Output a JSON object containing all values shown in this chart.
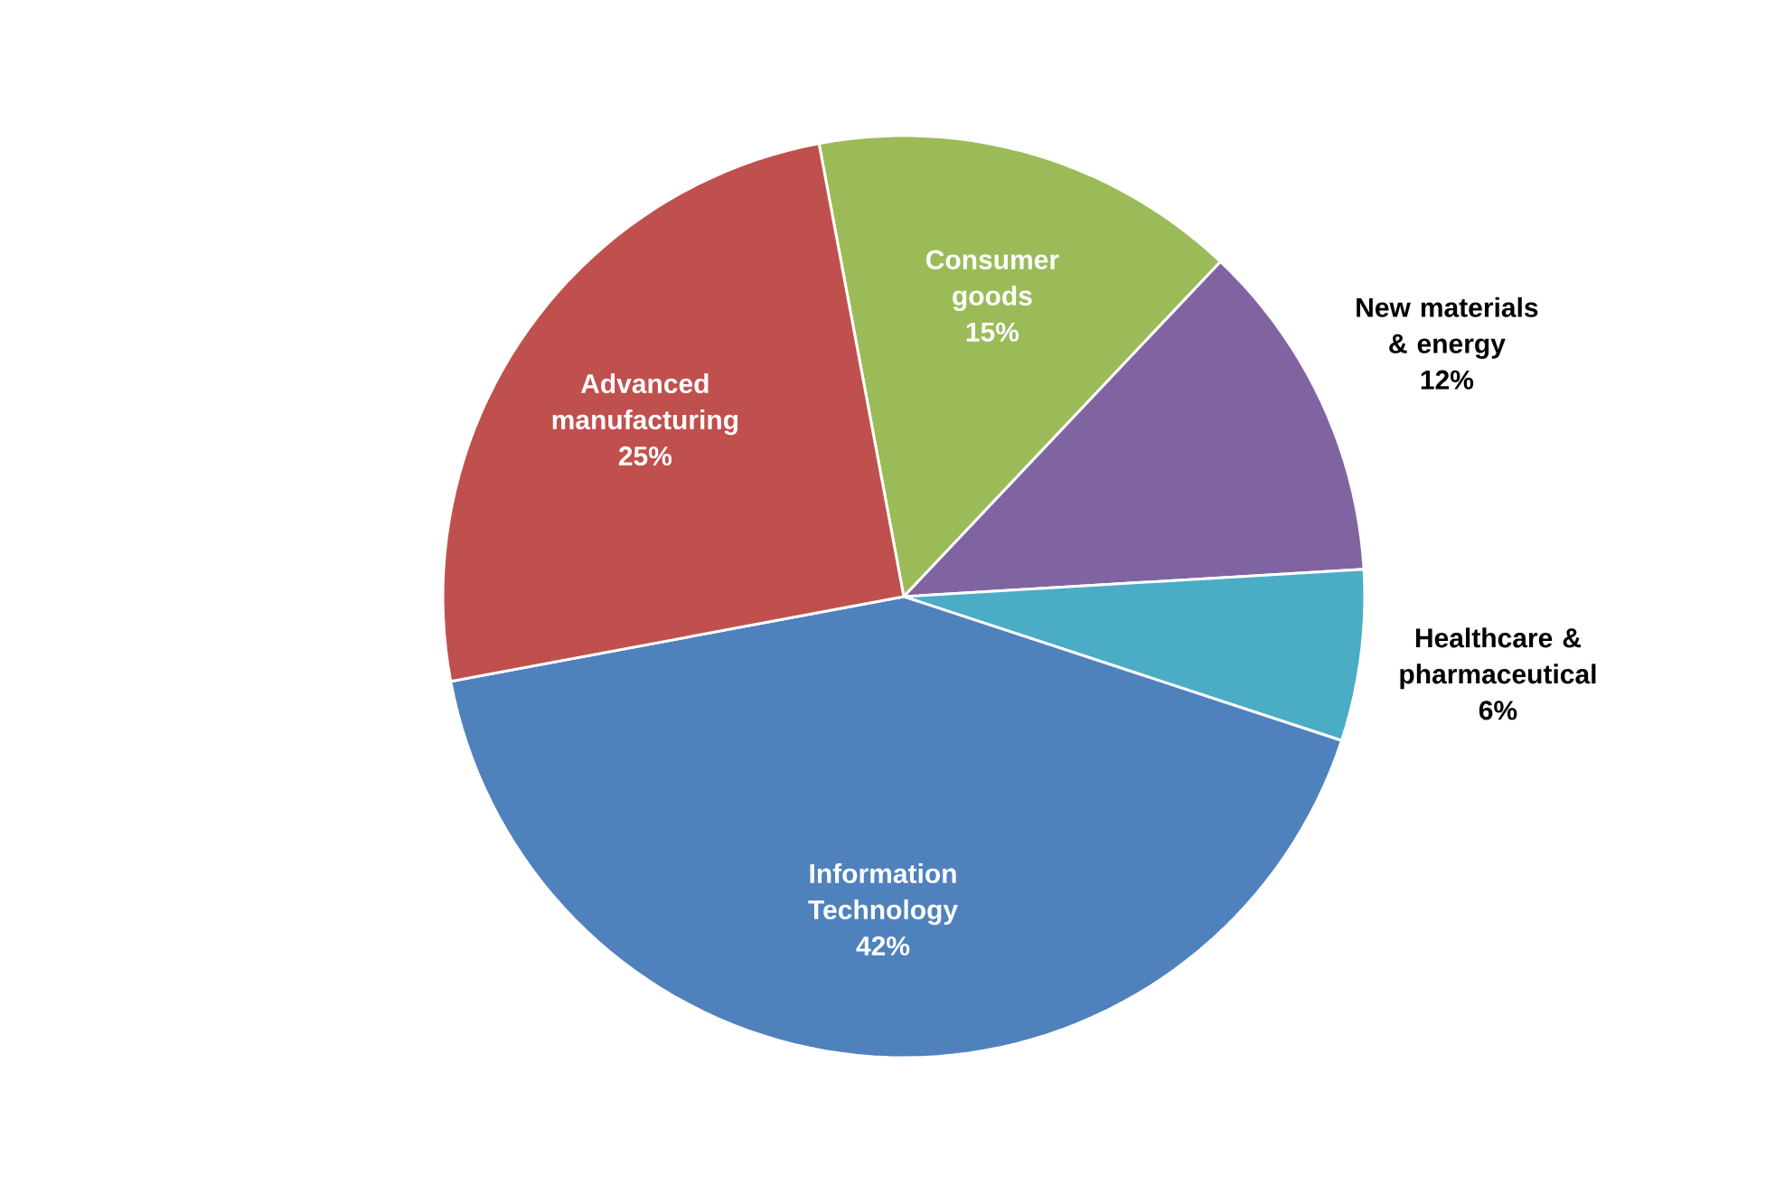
{
  "chart_data": {
    "type": "pie",
    "categories": [
      "Consumer goods",
      "New materials & energy",
      "Healthcare & pharmaceutical",
      "Information Technology",
      "Advanced manufacturing"
    ],
    "values": [
      15,
      12,
      6,
      42,
      25
    ],
    "value_labels": [
      "15%",
      "12%",
      "6%",
      "42%",
      "25%"
    ],
    "colors": [
      "#9bbb59",
      "#8064a2",
      "#4bacc6",
      "#4f81bd",
      "#c0504d"
    ]
  }
}
